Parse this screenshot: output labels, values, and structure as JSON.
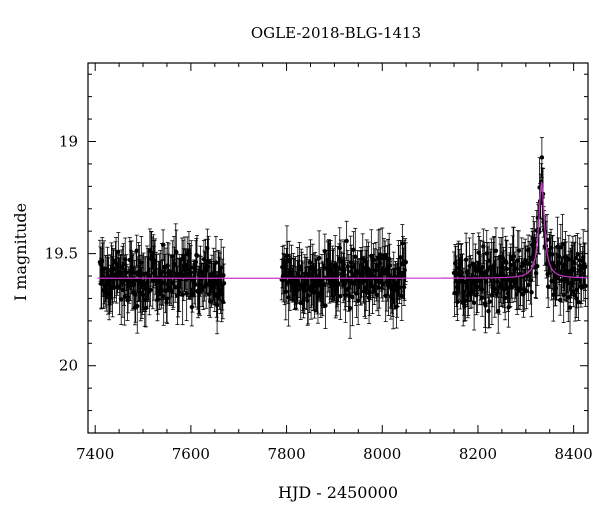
{
  "chart_data": {
    "type": "scatter",
    "title": "OGLE-2018-BLG-1413",
    "xlabel": "HJD - 2450000",
    "ylabel": "I magnitude",
    "xlim": [
      7385,
      8430
    ],
    "ylim": [
      20.3,
      18.65
    ],
    "y_inverted": true,
    "xticks": [
      7400,
      7600,
      7800,
      8000,
      8200,
      8400
    ],
    "yticks": [
      19,
      19.5,
      20
    ],
    "grid": false,
    "legend": "none",
    "colors": {
      "points": "#000000",
      "model": "#cc33cc"
    },
    "baseline_mag": 19.61,
    "model": {
      "t0": 8333,
      "peak_mag": 19.18,
      "tE_days": 14
    },
    "series": [
      {
        "segments": [
          {
            "x_start": 7410,
            "x_end": 7670
          },
          {
            "x_start": 7790,
            "x_end": 8050
          },
          {
            "x_start": 8150,
            "x_end": 8425
          }
        ],
        "scatter_sigma_mag": 0.12,
        "typical_error_mag": 0.09
      }
    ]
  }
}
